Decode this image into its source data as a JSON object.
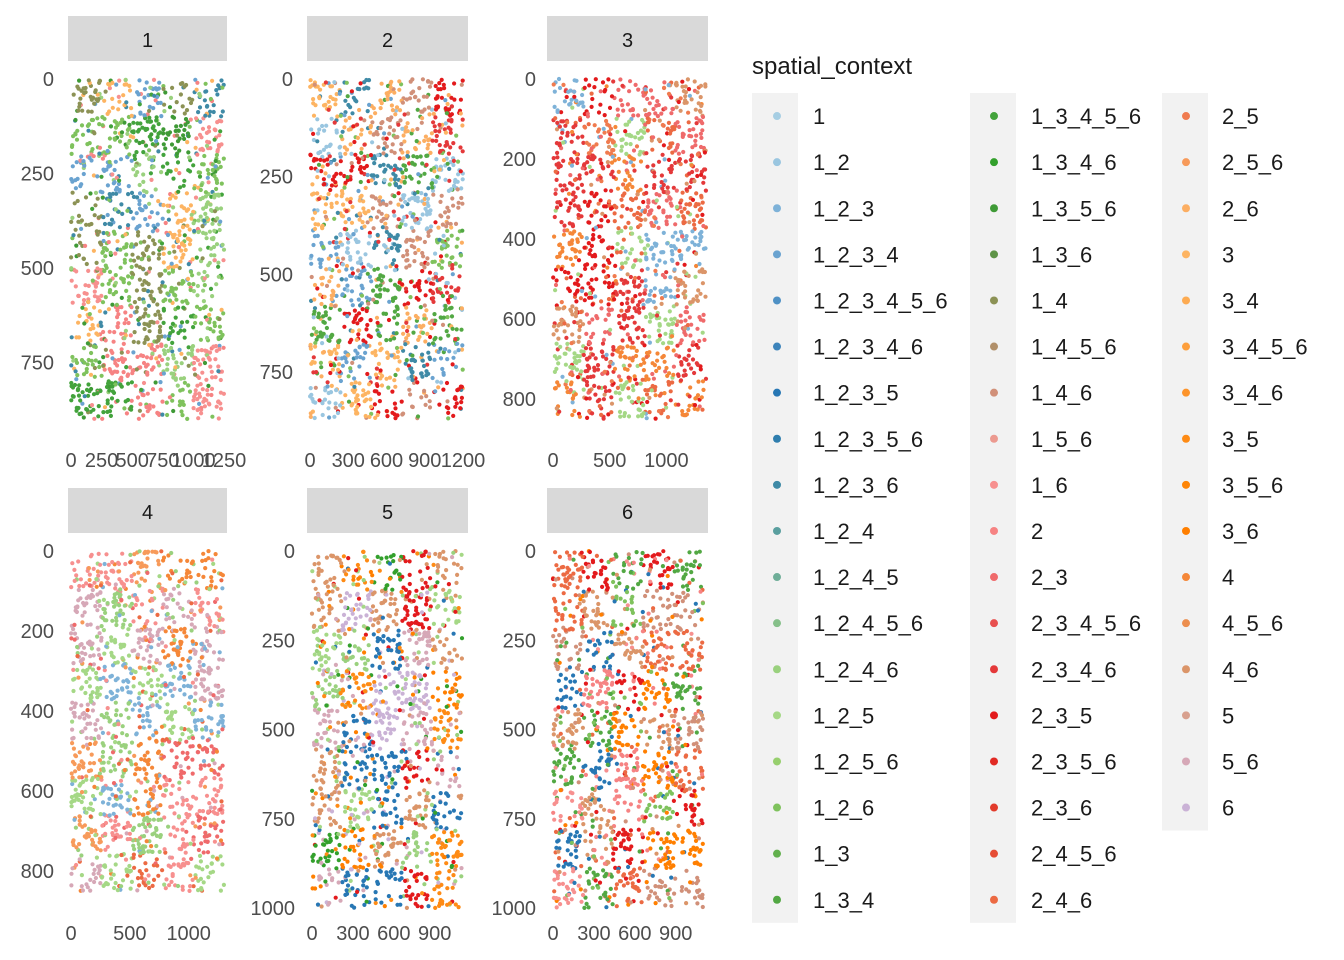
{
  "chart_data": {
    "type": "scatter",
    "facet_variable": "panel",
    "legend": {
      "title": "spatial_context",
      "position": "right",
      "entries": [
        {
          "label": "1",
          "color": "#a6cee3"
        },
        {
          "label": "1_2",
          "color": "#9ac6e0"
        },
        {
          "label": "1_2_3",
          "color": "#7eb2d8"
        },
        {
          "label": "1_2_3_4",
          "color": "#6aa3d0"
        },
        {
          "label": "1_2_3_4_5_6",
          "color": "#4f91c5"
        },
        {
          "label": "1_2_3_4_6",
          "color": "#3d84bb"
        },
        {
          "label": "1_2_3_5",
          "color": "#2777b4"
        },
        {
          "label": "1_2_3_5_6",
          "color": "#2f7eae"
        },
        {
          "label": "1_2_3_6",
          "color": "#3f8aa6"
        },
        {
          "label": "1_2_4",
          "color": "#5a9f9f"
        },
        {
          "label": "1_2_4_5",
          "color": "#6fae98"
        },
        {
          "label": "1_2_4_5_6",
          "color": "#86c08a"
        },
        {
          "label": "1_2_4_6",
          "color": "#9ad17e"
        },
        {
          "label": "1_2_5",
          "color": "#a5d886"
        },
        {
          "label": "1_2_5_6",
          "color": "#97cf6e"
        },
        {
          "label": "1_2_6",
          "color": "#7fc25d"
        },
        {
          "label": "1_3",
          "color": "#62b04d"
        },
        {
          "label": "1_3_4",
          "color": "#52a843"
        },
        {
          "label": "1_3_4_5_6",
          "color": "#43a33c"
        },
        {
          "label": "1_3_4_6",
          "color": "#33a02c"
        },
        {
          "label": "1_3_5_6",
          "color": "#3f9a36"
        },
        {
          "label": "1_3_6",
          "color": "#5e9447"
        },
        {
          "label": "1_4",
          "color": "#8c9255"
        },
        {
          "label": "1_4_5_6",
          "color": "#b1906a"
        },
        {
          "label": "1_4_6",
          "color": "#d19079"
        },
        {
          "label": "1_5_6",
          "color": "#ec9a90"
        },
        {
          "label": "1_6",
          "color": "#f7908f"
        },
        {
          "label": "2",
          "color": "#f68383"
        },
        {
          "label": "2_3",
          "color": "#ef6a6b"
        },
        {
          "label": "2_3_4_5_6",
          "color": "#e8504f"
        },
        {
          "label": "2_3_4_6",
          "color": "#e4393a"
        },
        {
          "label": "2_3_5",
          "color": "#e31a1c"
        },
        {
          "label": "2_3_5_6",
          "color": "#e12a24"
        },
        {
          "label": "2_3_6",
          "color": "#e23b2b"
        },
        {
          "label": "2_4_5_6",
          "color": "#e64d35"
        },
        {
          "label": "2_4_6",
          "color": "#ec6a43"
        },
        {
          "label": "2_5",
          "color": "#f07b4f"
        },
        {
          "label": "2_5_6",
          "color": "#f79a5a"
        },
        {
          "label": "2_6",
          "color": "#fcae62"
        },
        {
          "label": "3",
          "color": "#fdb462"
        },
        {
          "label": "3_4",
          "color": "#fdab52"
        },
        {
          "label": "3_4_5_6",
          "color": "#fd9f3c"
        },
        {
          "label": "3_4_6",
          "color": "#fd942a"
        },
        {
          "label": "3_5",
          "color": "#fe8b15"
        },
        {
          "label": "3_5_6",
          "color": "#fe8506"
        },
        {
          "label": "3_6",
          "color": "#ff7f00"
        },
        {
          "label": "4",
          "color": "#f58738"
        },
        {
          "label": "4_5_6",
          "color": "#ec8e4e"
        },
        {
          "label": "4_6",
          "color": "#db9569"
        },
        {
          "label": "5",
          "color": "#d8a08e"
        },
        {
          "label": "5_6",
          "color": "#d6a8b7"
        },
        {
          "label": "6",
          "color": "#cab2d6"
        }
      ]
    },
    "panels": [
      {
        "label": "1",
        "xlim": [
          0,
          1250
        ],
        "ylim": [
          0,
          900
        ],
        "xticks": [
          0,
          250,
          500,
          750,
          1000,
          1250
        ],
        "xtick_labels": [
          "0",
          "250",
          "500",
          "750",
          "1000",
          "1250"
        ],
        "yticks": [
          0,
          250,
          500,
          750
        ],
        "ytick_labels": [
          "0",
          "250",
          "500",
          "750"
        ],
        "dominant_contexts": [
          "1_6",
          "2",
          "1_3_5_6",
          "1_2_6",
          "1_2_4_6",
          "1_2_3_4",
          "1_4",
          "1_3_4_5_6",
          "1_2_3_6",
          "3"
        ]
      },
      {
        "label": "2",
        "xlim": [
          0,
          1200
        ],
        "ylim": [
          0,
          870
        ],
        "xticks": [
          0,
          300,
          600,
          900,
          1200
        ],
        "xtick_labels": [
          "0",
          "300",
          "600",
          "900",
          "1200"
        ],
        "yticks": [
          0,
          250,
          500,
          750
        ],
        "ytick_labels": [
          "0",
          "250",
          "500",
          "750"
        ],
        "dominant_contexts": [
          "1_2_6",
          "1_3_4",
          "1_2_3_6",
          "1_2_3_4",
          "1_2",
          "2_3_5",
          "3",
          "2_6",
          "1_4_6",
          "2_3_4_6"
        ]
      },
      {
        "label": "3",
        "xlim": [
          0,
          1350
        ],
        "ylim": [
          0,
          850
        ],
        "xticks": [
          0,
          500,
          1000
        ],
        "xtick_labels": [
          "0",
          "500",
          "1000"
        ],
        "yticks": [
          0,
          200,
          400,
          600,
          800
        ],
        "ytick_labels": [
          "0",
          "200",
          "400",
          "600",
          "800"
        ],
        "dominant_contexts": [
          "4",
          "2_5",
          "2_4_6",
          "4_6",
          "2_3_5",
          "2_3_4_6",
          "1_2_3",
          "1_2_5",
          "2_3"
        ]
      },
      {
        "label": "4",
        "xlim": [
          0,
          1300
        ],
        "ylim": [
          0,
          850
        ],
        "xticks": [
          0,
          500,
          1000
        ],
        "xtick_labels": [
          "0",
          "500",
          "1000"
        ],
        "yticks": [
          0,
          200,
          400,
          600,
          800
        ],
        "ytick_labels": [
          "0",
          "200",
          "400",
          "600",
          "800"
        ],
        "dominant_contexts": [
          "4",
          "2_5_6",
          "2_4_6",
          "1_2_3",
          "1_2_4_6",
          "1_2_5",
          "5_6",
          "1_6",
          "2_3"
        ]
      },
      {
        "label": "5",
        "xlim": [
          0,
          1100
        ],
        "ylim": [
          0,
          1000
        ],
        "xticks": [
          0,
          300,
          600,
          900
        ],
        "xtick_labels": [
          "0",
          "300",
          "600",
          "900"
        ],
        "yticks": [
          0,
          250,
          500,
          750,
          1000
        ],
        "ytick_labels": [
          "0",
          "250",
          "500",
          "750",
          "1000"
        ],
        "dominant_contexts": [
          "3_6",
          "3_5",
          "2_3_5",
          "1_3_4_6",
          "5_6",
          "1_2_3_5",
          "1_2_4_6",
          "1_2_5",
          "4_6",
          "6"
        ]
      },
      {
        "label": "6",
        "xlim": [
          0,
          1100
        ],
        "ylim": [
          0,
          1000
        ],
        "xticks": [
          0,
          300,
          600,
          900
        ],
        "xtick_labels": [
          "0",
          "300",
          "600",
          "900"
        ],
        "yticks": [
          0,
          250,
          500,
          750,
          1000
        ],
        "ytick_labels": [
          "0",
          "250",
          "500",
          "750",
          "1000"
        ],
        "dominant_contexts": [
          "2",
          "1_6",
          "4_6",
          "2_3_5",
          "3_6",
          "1_3_4",
          "1_2_3_5",
          "1_4_6",
          "1_2_6",
          "2_4_6"
        ]
      }
    ],
    "y_axis_reversed": true,
    "grid": false
  }
}
